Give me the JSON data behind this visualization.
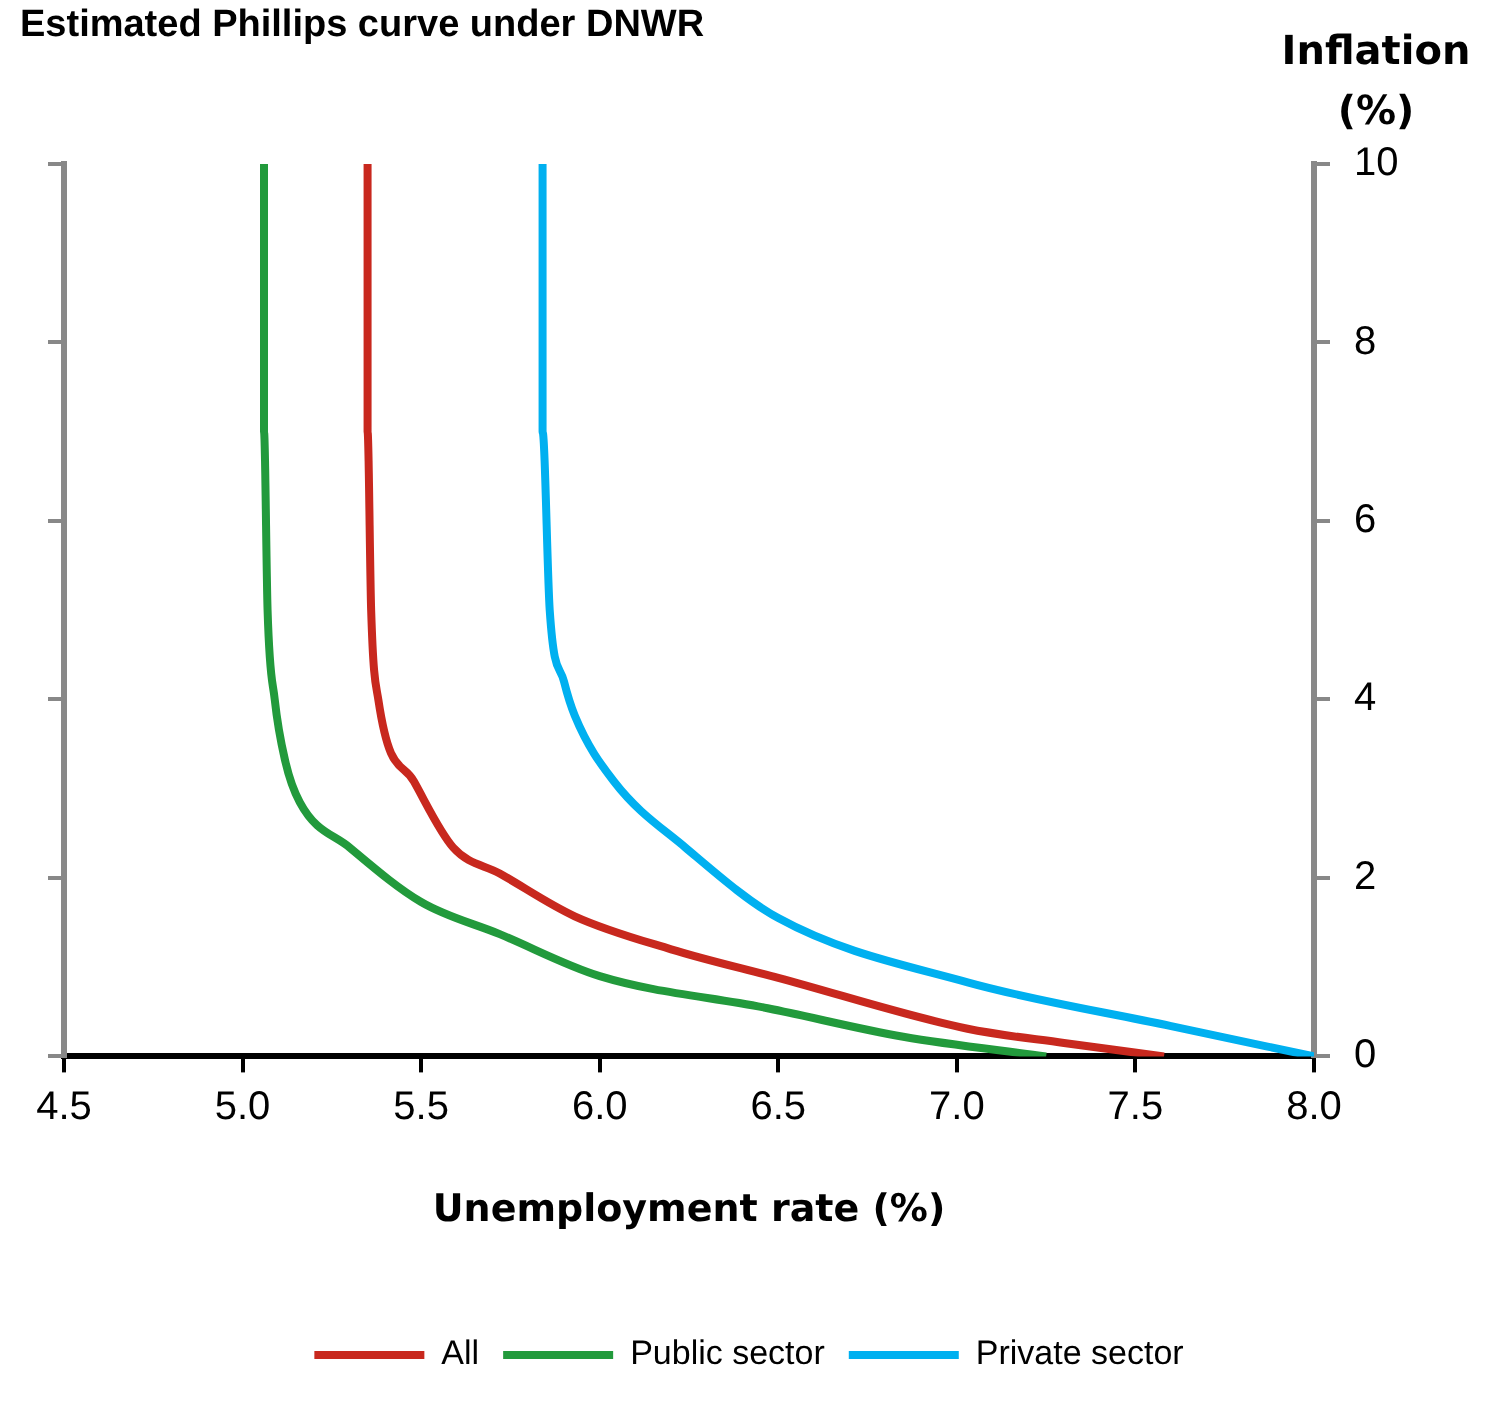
{
  "chart_data": {
    "type": "line",
    "title": "Estimated Phillips curve under DNWR",
    "xlabel": "Unemployment rate (%)",
    "ylabel": "Inflation (%)",
    "xlim": [
      4.5,
      8.0
    ],
    "xticks": [
      4.5,
      {
        "value": 5,
        "label": "5.0"
      },
      5.5,
      {
        "value": 6,
        "label": "6.0"
      },
      6.5,
      {
        "value": 7,
        "label": "7.0"
      },
      7.5,
      {
        "value": 8,
        "label": "8.0"
      }
    ],
    "ylim": [
      0,
      10
    ],
    "yticks": [
      0,
      2,
      4,
      6,
      8,
      10
    ],
    "grid": false,
    "legend": "bottom",
    "marker": "none",
    "line_style": "solid",
    "series": [
      {
        "name": "All",
        "color": "#c8281e",
        "x": [
          5.35,
          5.35,
          5.36,
          5.38,
          5.48,
          5.59,
          5.72,
          5.93,
          6.2,
          6.5,
          7.03,
          7.3,
          7.58
        ],
        "values": [
          10,
          7,
          5,
          4,
          3.08,
          2.34,
          2.05,
          1.57,
          1.2,
          0.88,
          0.31,
          0.15,
          0
        ]
      },
      {
        "name": "Public sector",
        "color": "#229a3c",
        "x": [
          5.06,
          5.06,
          5.07,
          5.09,
          5.12,
          5.16,
          5.3,
          5.5,
          5.72,
          6.0,
          6.47,
          6.85,
          7.25
        ],
        "values": [
          10,
          7,
          5,
          4,
          3.3,
          2.85,
          2.34,
          1.73,
          1.37,
          0.9,
          0.54,
          0.22,
          0
        ]
      },
      {
        "name": "Private sector",
        "color": "#00b0f0",
        "x": [
          5.84,
          5.84,
          5.86,
          5.9,
          5.93,
          6.04,
          6.24,
          6.5,
          7.03,
          7.6,
          8.0
        ],
        "values": [
          10,
          7,
          5,
          4.2,
          3.82,
          3.08,
          2.34,
          1.55,
          0.83,
          0.34,
          0
        ]
      }
    ]
  }
}
